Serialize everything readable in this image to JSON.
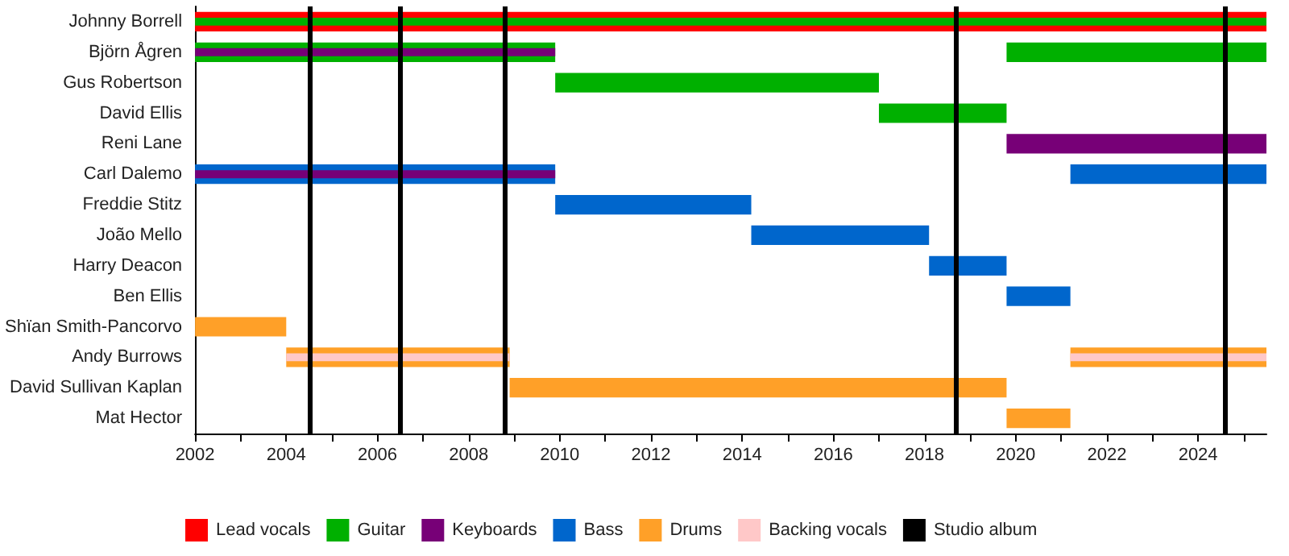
{
  "chart_data": {
    "type": "bar",
    "orientation": "horizontal",
    "legend": "bottom",
    "grid": false,
    "categories": [
      "Johnny Borrell",
      "Björn Ågren",
      "Gus Robertson",
      "David Ellis",
      "Reni Lane",
      "Carl Dalemo",
      "Freddie Stitz",
      "João Mello",
      "Harry Deacon",
      "Ben Ellis",
      "Shïan Smith-Pancorvo",
      "Andy Burrows",
      "David Sullivan Kaplan",
      "Mat Hector"
    ],
    "xlim": [
      2002,
      2025.5
    ],
    "xticks": [
      2002,
      {
        "value": 2003,
        "label": null
      },
      2004,
      {
        "value": 2005,
        "label": null
      },
      2006,
      {
        "value": 2007,
        "label": null
      },
      2008,
      {
        "value": 2009,
        "label": null
      },
      2010,
      {
        "value": 2011,
        "label": null
      },
      2012,
      {
        "value": 2013,
        "label": null
      },
      2014,
      {
        "value": 2015,
        "label": null
      },
      2016,
      {
        "value": 2017,
        "label": null
      },
      2018,
      {
        "value": 2019,
        "label": null
      },
      2020,
      {
        "value": 2021,
        "label": null
      },
      2022,
      {
        "value": 2023,
        "label": null
      },
      2024,
      {
        "value": 2025,
        "label": null
      }
    ],
    "series": [
      {
        "name": "Lead vocals",
        "color": "#ff0000",
        "base": [
          2002,
          null,
          null,
          null,
          null,
          null,
          null,
          null,
          null,
          null,
          null,
          null,
          null,
          null
        ],
        "values": [
          23.5,
          null,
          null,
          null,
          null,
          null,
          null,
          null,
          null,
          null,
          null,
          null,
          null,
          null
        ]
      },
      {
        "name": "Guitar",
        "color": "#00b000",
        "base": [
          null,
          2002,
          2009.9,
          2017.0,
          null,
          null,
          null,
          null,
          null,
          null,
          null,
          null,
          null,
          null
        ],
        "values": [
          null,
          7.9,
          7.1,
          2.8,
          null,
          null,
          null,
          null,
          null,
          null,
          null,
          null,
          null,
          null
        ]
      },
      {
        "color": "#00b000",
        "base": [
          null,
          2019.8,
          null,
          null,
          null,
          null,
          null,
          null,
          null,
          null,
          null,
          null,
          null,
          null
        ],
        "values": [
          null,
          5.7,
          null,
          null,
          null,
          null,
          null,
          null,
          null,
          null,
          null,
          null,
          null,
          null
        ]
      },
      {
        "name": "Keyboards",
        "color": "#770077",
        "base": [
          null,
          null,
          null,
          null,
          2019.8,
          null,
          null,
          null,
          null,
          null,
          null,
          null,
          null,
          null
        ],
        "values": [
          null,
          null,
          null,
          null,
          5.7,
          null,
          null,
          null,
          null,
          null,
          null,
          null,
          null,
          null
        ]
      },
      {
        "name": "Bass",
        "color": "#0066cc",
        "base": [
          null,
          null,
          null,
          null,
          null,
          2002,
          2009.9,
          2014.2,
          2018.1,
          2019.8,
          null,
          null,
          null,
          null
        ],
        "values": [
          null,
          null,
          null,
          null,
          null,
          7.9,
          4.3,
          3.9,
          1.7,
          1.4,
          null,
          null,
          null,
          null
        ]
      },
      {
        "color": "#0066cc",
        "base": [
          null,
          null,
          null,
          null,
          null,
          2021.2,
          null,
          null,
          null,
          null,
          null,
          null,
          null,
          null
        ],
        "values": [
          null,
          null,
          null,
          null,
          null,
          4.3,
          null,
          null,
          null,
          null,
          null,
          null,
          null,
          null
        ]
      },
      {
        "name": "Drums",
        "color": "#ffa028",
        "base": [
          null,
          null,
          null,
          null,
          null,
          null,
          null,
          null,
          null,
          null,
          2002,
          2004,
          2008.9,
          2019.8
        ],
        "values": [
          null,
          null,
          null,
          null,
          null,
          null,
          null,
          null,
          null,
          null,
          2.0,
          4.9,
          10.9,
          1.4
        ]
      },
      {
        "color": "#ffa028",
        "base": [
          null,
          null,
          null,
          null,
          null,
          null,
          null,
          null,
          null,
          null,
          null,
          2021.2,
          null,
          null
        ],
        "values": [
          null,
          null,
          null,
          null,
          null,
          null,
          null,
          null,
          null,
          null,
          null,
          4.3,
          null,
          null
        ]
      },
      {
        "color": "#00b000",
        "base": [
          2002,
          null,
          null,
          null,
          null,
          null,
          null,
          null,
          null,
          null,
          null,
          null,
          null,
          null
        ],
        "values": [
          23.5,
          null,
          null,
          null,
          null,
          null,
          null,
          null,
          null,
          null,
          null,
          null,
          null,
          null
        ]
      },
      {
        "color": "#770077",
        "base": [
          null,
          2002,
          null,
          null,
          null,
          2002,
          null,
          null,
          null,
          null,
          null,
          null,
          null,
          null
        ],
        "values": [
          null,
          7.9,
          null,
          null,
          null,
          7.9,
          null,
          null,
          null,
          null,
          null,
          null,
          null,
          null
        ]
      },
      {
        "name": "Backing vocals",
        "color": "#ffc8c8",
        "base": [
          null,
          null,
          null,
          null,
          null,
          null,
          null,
          null,
          null,
          null,
          null,
          2004,
          null,
          null
        ],
        "values": [
          null,
          null,
          null,
          null,
          null,
          null,
          null,
          null,
          null,
          null,
          null,
          4.9,
          null,
          null
        ]
      },
      {
        "color": "#ffc8c8",
        "base": [
          null,
          null,
          null,
          null,
          null,
          null,
          null,
          null,
          null,
          null,
          null,
          2021.2,
          null,
          null
        ],
        "values": [
          null,
          null,
          null,
          null,
          null,
          null,
          null,
          null,
          null,
          null,
          null,
          4.3,
          null,
          null
        ]
      }
    ],
    "ref_lines": [
      {
        "axis": "x",
        "value": 2004.5,
        "label": "Studio album",
        "color": "#000000"
      },
      {
        "axis": "x",
        "value": 2006.5,
        "label": null,
        "color": "#000000"
      },
      {
        "axis": "x",
        "value": 2008.8,
        "label": null,
        "color": "#000000"
      },
      {
        "axis": "x",
        "value": 2018.7,
        "label": null,
        "color": "#000000"
      },
      {
        "axis": "x",
        "value": 2024.6,
        "label": null,
        "color": "#000000"
      }
    ]
  }
}
